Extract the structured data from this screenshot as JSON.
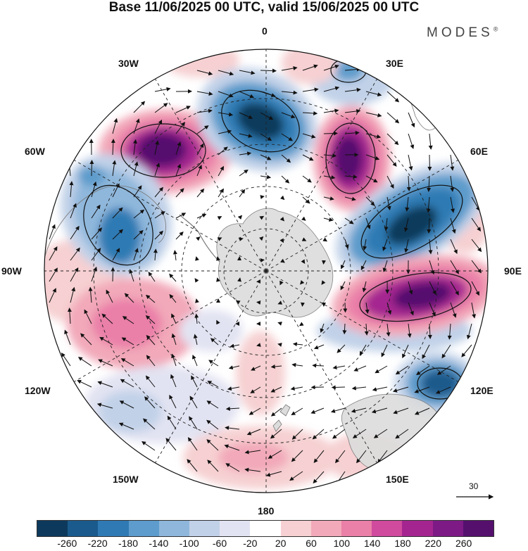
{
  "title": "Base 11/06/2025 00 UTC, valid 15/06/2025 00 UTC",
  "logo": "MODES",
  "logo_mark": "®",
  "longitude_labels": {
    "deg0": "0",
    "deg30e": "30E",
    "deg60e": "60E",
    "deg90e": "90E",
    "deg120e": "120E",
    "deg150e": "150E",
    "deg180": "180",
    "deg150w": "150W",
    "deg120w": "120W",
    "deg90w": "90W",
    "deg60w": "60W",
    "deg30w": "30W"
  },
  "vector_scale_label": "30",
  "colorbar": {
    "colors": [
      "#0d3a5c",
      "#1a5a8c",
      "#2f7ab4",
      "#5d9ccc",
      "#8fb7dc",
      "#c1d1e8",
      "#e2e3f2",
      "#ffffff",
      "#f6d0d2",
      "#f2a9b9",
      "#ea7fa8",
      "#d04a9e",
      "#a52590",
      "#7d1a86",
      "#55106e"
    ],
    "tick_labels": [
      "-260",
      "-220",
      "-180",
      "-140",
      "-100",
      "-60",
      "-20",
      "20",
      "60",
      "100",
      "140",
      "180",
      "220",
      "260"
    ]
  },
  "colors": {
    "land": "#dcdcdc",
    "coast": "#777777",
    "grid": "#222222"
  }
}
